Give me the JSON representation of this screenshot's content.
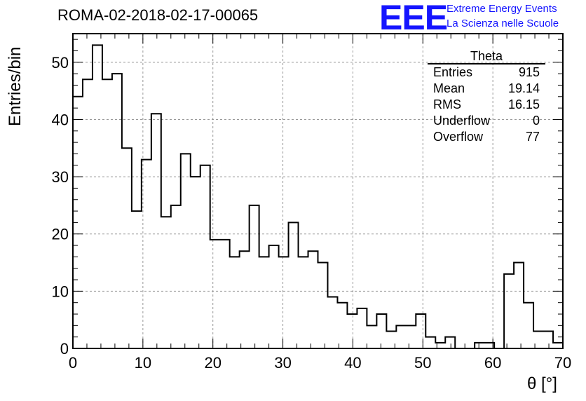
{
  "header": {
    "run_title": "ROMA-02-2018-02-17-00065",
    "logo_text": "EEE",
    "logo_line1": "Extreme Energy Events",
    "logo_line2": "La Scienza nelle Scuole",
    "logo_color": "#1414ff"
  },
  "stats_box": {
    "title": "Theta",
    "rows": [
      {
        "label": "Entries",
        "value": "915"
      },
      {
        "label": "Mean",
        "value": "19.14"
      },
      {
        "label": "RMS",
        "value": "16.15"
      },
      {
        "label": "Underflow",
        "value": "0"
      },
      {
        "label": "Overflow",
        "value": "77"
      }
    ]
  },
  "chart_data": {
    "type": "bar",
    "histogram": true,
    "title": "ROMA-02-2018-02-17-00065",
    "xlabel": "θ [°]",
    "ylabel": "Entries/bin",
    "xlim": [
      0,
      70
    ],
    "ylim": [
      0,
      55
    ],
    "bin_width": 1.4,
    "x_ticks": [
      "0",
      "10",
      "20",
      "30",
      "40",
      "50",
      "60",
      "70"
    ],
    "y_ticks": [
      "0",
      "10",
      "20",
      "30",
      "40",
      "50"
    ],
    "grid": true,
    "values": [
      44,
      47,
      53,
      47,
      48,
      35,
      24,
      33,
      41,
      23,
      25,
      34,
      30,
      32,
      19,
      19,
      16,
      17,
      25,
      16,
      18,
      16,
      22,
      16,
      17,
      15,
      9,
      8,
      6,
      7,
      4,
      6,
      3,
      4,
      4,
      6,
      2,
      1,
      2,
      0,
      0,
      1,
      1,
      0,
      13,
      15,
      8,
      3,
      3,
      1
    ]
  }
}
